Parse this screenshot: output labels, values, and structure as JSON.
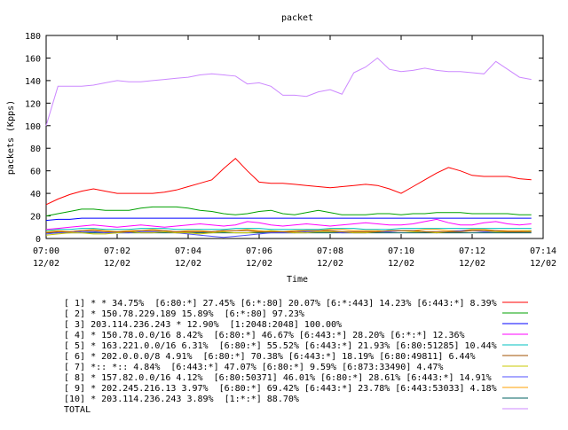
{
  "chart_data": {
    "type": "line",
    "title": "packet",
    "xlabel": "Time",
    "ylabel": "packets (Kpps)",
    "ylim": [
      0,
      180
    ],
    "yticks": [
      0,
      20,
      40,
      60,
      80,
      100,
      120,
      140,
      160,
      180
    ],
    "xlim": [
      "07:00",
      "07:14"
    ],
    "xticks": [
      {
        "time": "07:00",
        "date": "12/02"
      },
      {
        "time": "07:02",
        "date": "12/02"
      },
      {
        "time": "07:04",
        "date": "12/02"
      },
      {
        "time": "07:06",
        "date": "12/02"
      },
      {
        "time": "07:08",
        "date": "12/02"
      },
      {
        "time": "07:10",
        "date": "12/02"
      },
      {
        "time": "07:12",
        "date": "12/02"
      },
      {
        "time": "07:14",
        "date": "12/02"
      }
    ],
    "grid": false,
    "legend_position": "bottom",
    "x": [
      "07:00:00",
      "07:00:20",
      "07:00:40",
      "07:01:00",
      "07:01:20",
      "07:01:40",
      "07:02:00",
      "07:02:20",
      "07:02:40",
      "07:03:00",
      "07:03:20",
      "07:03:40",
      "07:04:00",
      "07:04:20",
      "07:04:40",
      "07:05:00",
      "07:05:20",
      "07:05:40",
      "07:06:00",
      "07:06:20",
      "07:06:40",
      "07:07:00",
      "07:07:20",
      "07:07:40",
      "07:08:00",
      "07:08:20",
      "07:08:40",
      "07:09:00",
      "07:09:20",
      "07:09:40",
      "07:10:00",
      "07:10:20",
      "07:10:40",
      "07:11:00",
      "07:11:20",
      "07:11:40",
      "07:12:00",
      "07:12:20",
      "07:12:40",
      "07:13:00",
      "07:13:20",
      "07:13:40"
    ],
    "series": [
      {
        "name": "[ 1] * * 34.75%  [6:80:*] 27.45% [6:*:80] 20.07% [6:*:443] 14.23% [6:443:*] 8.39%",
        "color": "#ff0000",
        "values": [
          30,
          35,
          39,
          42,
          44,
          42,
          40,
          40,
          40,
          40,
          41,
          43,
          46,
          49,
          52,
          62,
          71,
          60,
          50,
          49,
          49,
          48,
          47,
          46,
          45,
          46,
          47,
          48,
          47,
          44,
          40,
          46,
          52,
          58,
          63,
          60,
          56,
          55,
          55,
          55,
          53,
          52
        ]
      },
      {
        "name": "[ 2] * 150.78.229.189 15.89%  [6:*:80] 97.23%",
        "color": "#00a000",
        "values": [
          20,
          22,
          24,
          26,
          26,
          25,
          25,
          25,
          27,
          28,
          28,
          28,
          27,
          25,
          24,
          22,
          21,
          22,
          24,
          25,
          22,
          21,
          23,
          25,
          23,
          21,
          21,
          21,
          22,
          22,
          21,
          22,
          22,
          23,
          23,
          23,
          22,
          22,
          22,
          22,
          21,
          21
        ]
      },
      {
        "name": "[ 3] 203.114.236.243 * 12.90%  [1:2048:2048] 100.00%",
        "color": "#0000ff",
        "values": [
          16,
          17,
          17,
          18,
          18,
          18,
          18,
          18,
          18,
          18,
          18,
          18,
          18,
          18,
          18,
          18,
          18,
          18,
          18,
          18,
          18,
          18,
          18,
          18,
          18,
          18,
          18,
          18,
          18,
          18,
          18,
          18,
          18,
          18,
          18,
          18,
          18,
          18,
          18,
          18,
          18,
          18
        ]
      },
      {
        "name": "[ 4] * 150.78.0.0/16 8.42%  [6:80:*] 46.67% [6:443:*] 28.20% [6:*:*] 12.36%",
        "color": "#ff00ff",
        "values": [
          8,
          9,
          10,
          11,
          12,
          11,
          10,
          11,
          12,
          11,
          10,
          11,
          12,
          13,
          12,
          11,
          12,
          15,
          14,
          12,
          11,
          12,
          13,
          12,
          11,
          12,
          13,
          14,
          13,
          12,
          12,
          13,
          15,
          17,
          14,
          12,
          12,
          14,
          15,
          13,
          12,
          13
        ]
      },
      {
        "name": "[ 5] * 163.221.0.0/16 6.31%  [6:80:*] 55.52% [6:443:*] 21.93% [6:80:51285] 10.44%",
        "color": "#00c0c0",
        "values": [
          7,
          8,
          8,
          9,
          9,
          8,
          8,
          8,
          9,
          9,
          9,
          8,
          8,
          8,
          8,
          8,
          9,
          9,
          9,
          8,
          8,
          8,
          8,
          8,
          9,
          9,
          9,
          8,
          8,
          8,
          9,
          9,
          9,
          9,
          9,
          9,
          9,
          9,
          9,
          9,
          9,
          9
        ]
      },
      {
        "name": "[ 6] * 202.0.0.0/8 4.91%  [6:80:*] 70.38% [6:443:*] 18.19% [6:80:49811] 6.44%",
        "color": "#a05000",
        "values": [
          5,
          6,
          6,
          7,
          7,
          6,
          6,
          6,
          7,
          7,
          7,
          6,
          6,
          6,
          6,
          7,
          7,
          7,
          6,
          6,
          6,
          6,
          7,
          7,
          7,
          6,
          6,
          6,
          6,
          7,
          7,
          7,
          6,
          6,
          6,
          6,
          7,
          7,
          7,
          6,
          6,
          6
        ]
      },
      {
        "name": "[ 7] *:: *:: 4.84%  [6:443:*] 47.07% [6:80:*] 9.59% [6:873:33490] 4.47%",
        "color": "#c8c800",
        "values": [
          3,
          4,
          5,
          5,
          4,
          4,
          5,
          6,
          5,
          5,
          6,
          5,
          5,
          4,
          5,
          6,
          5,
          5,
          6,
          7,
          6,
          5,
          5,
          6,
          6,
          6,
          5,
          5,
          6,
          7,
          7,
          6,
          6,
          5,
          6,
          6,
          7,
          7,
          6,
          6,
          6,
          7
        ]
      },
      {
        "name": "[ 8] * 157.82.0.0/16 4.12%  [6:80:50371] 46.01% [6:80:*] 28.61% [6:443:*] 14.91%",
        "color": "#5050ff",
        "values": [
          4,
          5,
          5,
          6,
          6,
          5,
          5,
          5,
          6,
          6,
          6,
          5,
          4,
          3,
          2,
          1,
          2,
          3,
          4,
          5,
          5,
          5,
          6,
          6,
          6,
          5,
          5,
          5,
          6,
          6,
          7,
          7,
          6,
          5,
          6,
          7,
          7,
          6,
          6,
          6,
          6,
          7
        ]
      },
      {
        "name": "[ 9] * 202.245.216.13 3.97%  [6:80:*] 69.42% [6:443:*] 23.78% [6:443:53033] 4.18%",
        "color": "#ffa000",
        "values": [
          6,
          7,
          6,
          7,
          8,
          7,
          6,
          7,
          7,
          8,
          7,
          6,
          7,
          7,
          6,
          7,
          7,
          8,
          7,
          6,
          6,
          7,
          7,
          7,
          8,
          8,
          7,
          7,
          7,
          6,
          7,
          7,
          8,
          8,
          7,
          7,
          8,
          8,
          7,
          7,
          7,
          7
        ]
      },
      {
        "name": "[10] * 203.114.236.243 3.89%  [1:*:*] 88.70%",
        "color": "#006060",
        "values": [
          5,
          5,
          5,
          5,
          5,
          5,
          5,
          5,
          5,
          5,
          5,
          5,
          5,
          5,
          5,
          5,
          5,
          5,
          5,
          5,
          5,
          5,
          5,
          5,
          5,
          5,
          5,
          5,
          5,
          5,
          5,
          5,
          5,
          5,
          5,
          5,
          5,
          5,
          5,
          5,
          5,
          5
        ]
      },
      {
        "name": "TOTAL",
        "color": "#cc88ff",
        "values": [
          100,
          135,
          135,
          135,
          136,
          138,
          140,
          139,
          139,
          140,
          141,
          142,
          143,
          145,
          146,
          145,
          144,
          137,
          138,
          135,
          127,
          127,
          126,
          130,
          132,
          128,
          147,
          152,
          160,
          150,
          148,
          149,
          151,
          149,
          148,
          148,
          147,
          146,
          157,
          150,
          143,
          141
        ]
      }
    ]
  }
}
